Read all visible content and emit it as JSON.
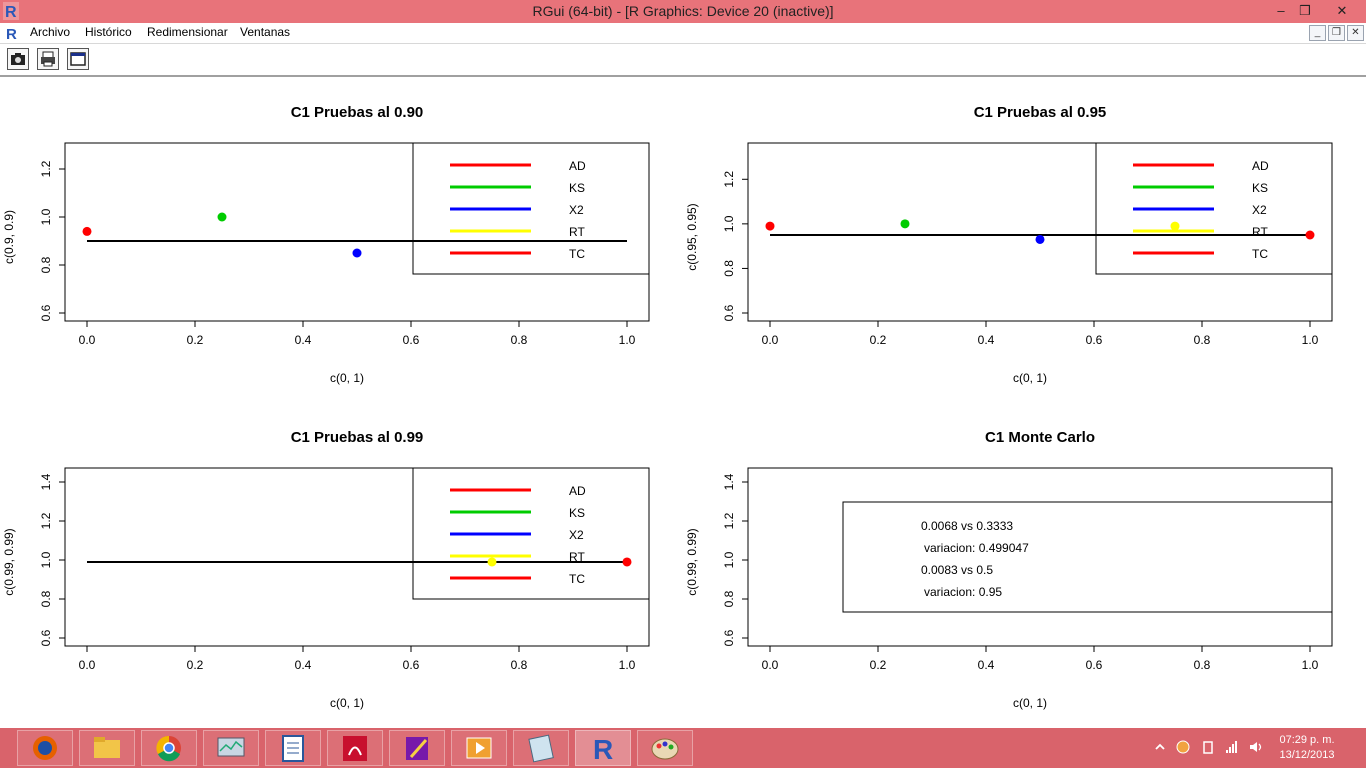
{
  "window": {
    "title": "RGui (64-bit) - [R Graphics: Device 20 (inactive)]",
    "controls": {
      "minimize": "–",
      "restore": "❒",
      "close": "✕"
    }
  },
  "menu": {
    "items": [
      "Archivo",
      "Histórico",
      "Redimensionar",
      "Ventanas"
    ],
    "mdi_controls": {
      "minimize": "_",
      "restore": "❒",
      "close": "✕"
    }
  },
  "toolbar": {
    "buttons": [
      {
        "name": "copy-as-metafile",
        "icon": "camera-icon"
      },
      {
        "name": "print",
        "icon": "printer-icon"
      },
      {
        "name": "console",
        "icon": "window-icon"
      }
    ]
  },
  "colors": {
    "AD": "#ff0000",
    "KS": "#00cc00",
    "X2": "#0000ff",
    "RT": "#ffff00",
    "TC": "#ff0000",
    "titlebar": "#e8737a",
    "taskbar": "#d9636b"
  },
  "chart_data": [
    {
      "type": "scatter",
      "title": "C1 Pruebas al 0.90",
      "xlabel": "c(0, 1)",
      "ylabel": "c(0.9, 0.9)",
      "xlim": [
        0,
        1
      ],
      "ylim": [
        0.6,
        1.25
      ],
      "xticks": [
        "0.0",
        "0.2",
        "0.4",
        "0.6",
        "0.8",
        "1.0"
      ],
      "yticks": [
        "0.6",
        "0.8",
        "1.0",
        "1.2"
      ],
      "hline": {
        "y": 0.9,
        "x0": 0,
        "x1": 1
      },
      "points": [
        {
          "x": 0,
          "y": 0.94,
          "color": "#ff0000"
        },
        {
          "x": 0.25,
          "y": 1.0,
          "color": "#00cc00"
        },
        {
          "x": 0.5,
          "y": 0.85,
          "color": "#0000ff"
        }
      ],
      "legend": {
        "position": "top-right",
        "entries": [
          {
            "label": "AD",
            "color": "#ff0000"
          },
          {
            "label": "KS",
            "color": "#00cc00"
          },
          {
            "label": "X2",
            "color": "#0000ff"
          },
          {
            "label": "RT",
            "color": "#ffff00"
          },
          {
            "label": "TC",
            "color": "#ff0000"
          }
        ]
      }
    },
    {
      "type": "scatter",
      "title": "C1 Pruebas al 0.95",
      "xlabel": "c(0, 1)",
      "ylabel": "c(0.95, 0.95)",
      "xlim": [
        0,
        1
      ],
      "ylim": [
        0.6,
        1.3
      ],
      "xticks": [
        "0.0",
        "0.2",
        "0.4",
        "0.6",
        "0.8",
        "1.0"
      ],
      "yticks": [
        "0.6",
        "0.8",
        "1.0",
        "1.2"
      ],
      "hline": {
        "y": 0.95,
        "x0": 0,
        "x1": 1
      },
      "points": [
        {
          "x": 0,
          "y": 0.99,
          "color": "#ff0000"
        },
        {
          "x": 0.25,
          "y": 1.0,
          "color": "#00cc00"
        },
        {
          "x": 0.5,
          "y": 0.93,
          "color": "#0000ff"
        },
        {
          "x": 0.75,
          "y": 0.99,
          "color": "#ffff00"
        },
        {
          "x": 1,
          "y": 0.95,
          "color": "#ff0000"
        }
      ],
      "legend": {
        "position": "top-right",
        "entries": [
          {
            "label": "AD",
            "color": "#ff0000"
          },
          {
            "label": "KS",
            "color": "#00cc00"
          },
          {
            "label": "X2",
            "color": "#0000ff"
          },
          {
            "label": "RT",
            "color": "#ffff00"
          },
          {
            "label": "TC",
            "color": "#ff0000"
          }
        ]
      }
    },
    {
      "type": "scatter",
      "title": "C1 Pruebas al 0.99",
      "xlabel": "c(0, 1)",
      "ylabel": "c(0.99, 0.99)",
      "xlim": [
        0,
        1
      ],
      "ylim": [
        0.6,
        1.4
      ],
      "xticks": [
        "0.0",
        "0.2",
        "0.4",
        "0.6",
        "0.8",
        "1.0"
      ],
      "yticks": [
        "0.6",
        "0.8",
        "1.0",
        "1.2",
        "1.4"
      ],
      "hline": {
        "y": 0.99,
        "x0": 0,
        "x1": 1
      },
      "points": [
        {
          "x": 0.75,
          "y": 0.99,
          "color": "#ffff00"
        },
        {
          "x": 1,
          "y": 0.99,
          "color": "#ff0000"
        }
      ],
      "legend": {
        "position": "top-right",
        "entries": [
          {
            "label": "AD",
            "color": "#ff0000"
          },
          {
            "label": "KS",
            "color": "#00cc00"
          },
          {
            "label": "X2",
            "color": "#0000ff"
          },
          {
            "label": "RT",
            "color": "#ffff00"
          },
          {
            "label": "TC",
            "color": "#ff0000"
          }
        ]
      }
    },
    {
      "type": "scatter",
      "title": "C1 Monte Carlo",
      "xlabel": "c(0, 1)",
      "ylabel": "c(0.99, 0.99)",
      "xlim": [
        0,
        1
      ],
      "ylim": [
        0.6,
        1.4
      ],
      "xticks": [
        "0.0",
        "0.2",
        "0.4",
        "0.6",
        "0.8",
        "1.0"
      ],
      "yticks": [
        "0.6",
        "0.8",
        "1.0",
        "1.2",
        "1.4"
      ],
      "points": [],
      "textbox": {
        "position": "center-right",
        "lines": [
          "0.0068 vs 0.3333",
          "variacion:  0.499047",
          "0.0083 vs 0.5",
          "variacion:  0.95"
        ]
      }
    }
  ],
  "taskbar": {
    "apps": [
      {
        "name": "firefox",
        "icon": "firefox-icon"
      },
      {
        "name": "file-explorer",
        "icon": "folder-icon"
      },
      {
        "name": "chrome",
        "icon": "chrome-icon"
      },
      {
        "name": "task-manager",
        "icon": "monitor-icon"
      },
      {
        "name": "word",
        "icon": "document-icon"
      },
      {
        "name": "acrobat",
        "icon": "pdf-icon"
      },
      {
        "name": "onenote",
        "icon": "notebook-icon"
      },
      {
        "name": "media-player",
        "icon": "video-icon"
      },
      {
        "name": "notes",
        "icon": "notepad-icon"
      },
      {
        "name": "r-gui",
        "icon": "r-icon"
      },
      {
        "name": "paint",
        "icon": "palette-icon"
      }
    ],
    "tray": {
      "icons": [
        "chevron-up-icon",
        "app-tray-icon",
        "usb-icon",
        "signal-icon",
        "volume-icon"
      ],
      "time": "07:29 p. m.",
      "date": "13/12/2013"
    }
  }
}
